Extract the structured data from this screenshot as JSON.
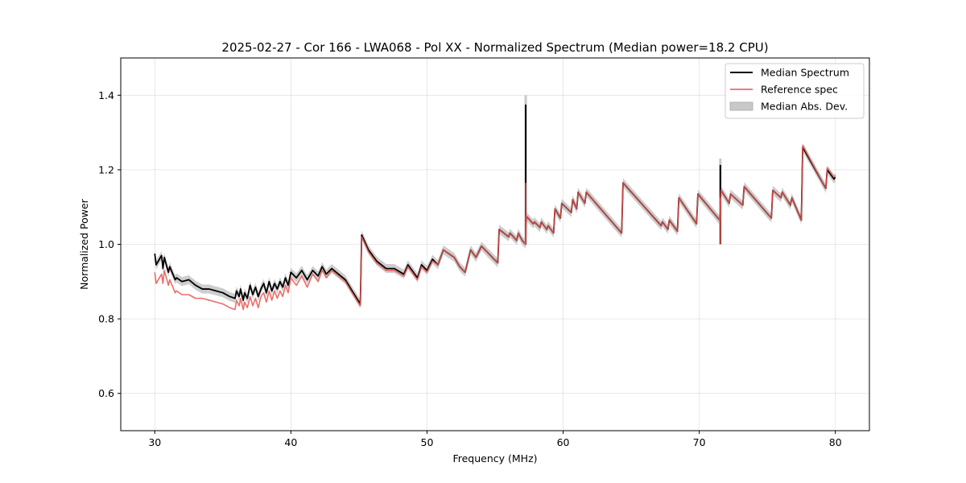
{
  "chart_data": {
    "type": "line",
    "title": "2025-02-27 - Cor 166 - LWA068 - Pol XX - Normalized Spectrum (Median power=18.2 CPU)",
    "xlabel": "Frequency (MHz)",
    "ylabel": "Normalized Power",
    "xlim": [
      27.5,
      82.5
    ],
    "ylim": [
      0.5,
      1.5
    ],
    "xticks": [
      30,
      40,
      50,
      60,
      70,
      80
    ],
    "yticks": [
      0.6,
      0.8,
      1.0,
      1.2,
      1.4
    ],
    "xtick_labels": [
      "30",
      "40",
      "50",
      "60",
      "70",
      "80"
    ],
    "ytick_labels": [
      "0.6",
      "0.8",
      "1.0",
      "1.2",
      "1.4"
    ],
    "grid": true,
    "legend_position": "top-right",
    "mad_width": 0.012,
    "spikes": [
      {
        "x": 57.25,
        "median_top": 1.375,
        "mad_top": 1.4,
        "reference_top": 1.165
      },
      {
        "x": 71.55,
        "median_top": 1.213,
        "mad_top": 1.23,
        "reference_top": 1.125
      }
    ],
    "series": [
      {
        "name": "Median Spectrum",
        "color": "#000000",
        "x": [
          30.0,
          30.1,
          30.5,
          30.6,
          30.7,
          31.0,
          31.1,
          31.5,
          31.6,
          32.0,
          32.5,
          33.0,
          33.5,
          34.0,
          34.5,
          35.0,
          35.5,
          35.9,
          36.0,
          36.2,
          36.3,
          36.5,
          36.6,
          36.8,
          37.0,
          37.2,
          37.4,
          37.6,
          37.8,
          38.0,
          38.2,
          38.4,
          38.6,
          38.8,
          39.0,
          39.2,
          39.4,
          39.6,
          39.8,
          40.0,
          40.4,
          40.8,
          41.2,
          41.6,
          42.0,
          42.3,
          42.6,
          43.0,
          43.5,
          44.0,
          44.5,
          45.1,
          45.2,
          45.7,
          46.3,
          47.0,
          47.6,
          48.3,
          48.6,
          49.3,
          49.6,
          50.0,
          50.4,
          50.8,
          51.2,
          51.6,
          52.0,
          52.4,
          52.8,
          53.2,
          53.6,
          54.0,
          54.4,
          54.8,
          55.2,
          55.3,
          56.0,
          56.1,
          56.6,
          56.7,
          57.0,
          57.25,
          57.3,
          57.8,
          57.9,
          58.3,
          58.4,
          58.8,
          58.9,
          59.3,
          59.4,
          59.8,
          59.9,
          60.6,
          60.7,
          61.0,
          61.1,
          61.6,
          61.7,
          64.3,
          64.4,
          67.2,
          67.3,
          67.7,
          67.8,
          68.4,
          68.5,
          69.8,
          69.9,
          71.5,
          71.6,
          72.2,
          72.3,
          73.2,
          73.3,
          75.3,
          75.4,
          76.0,
          76.1,
          76.7,
          76.8,
          77.5,
          77.6,
          79.3,
          79.4,
          79.9,
          80.0
        ],
        "values": [
          0.975,
          0.945,
          0.97,
          0.935,
          0.965,
          0.925,
          0.94,
          0.905,
          0.91,
          0.9,
          0.905,
          0.89,
          0.88,
          0.88,
          0.875,
          0.87,
          0.86,
          0.855,
          0.875,
          0.86,
          0.88,
          0.85,
          0.87,
          0.855,
          0.89,
          0.865,
          0.885,
          0.86,
          0.88,
          0.895,
          0.87,
          0.9,
          0.875,
          0.895,
          0.88,
          0.9,
          0.885,
          0.91,
          0.89,
          0.925,
          0.91,
          0.93,
          0.905,
          0.93,
          0.915,
          0.94,
          0.92,
          0.935,
          0.92,
          0.905,
          0.875,
          0.84,
          1.025,
          0.985,
          0.955,
          0.935,
          0.935,
          0.92,
          0.945,
          0.91,
          0.945,
          0.93,
          0.96,
          0.945,
          0.985,
          0.975,
          0.965,
          0.94,
          0.925,
          0.985,
          0.965,
          0.995,
          0.98,
          0.965,
          0.95,
          1.04,
          1.02,
          1.03,
          1.01,
          1.03,
          1.01,
          1.0,
          1.075,
          1.055,
          1.06,
          1.045,
          1.06,
          1.04,
          1.05,
          1.03,
          1.095,
          1.07,
          1.11,
          1.085,
          1.12,
          1.095,
          1.14,
          1.11,
          1.14,
          1.03,
          1.165,
          1.05,
          1.06,
          1.04,
          1.065,
          1.035,
          1.125,
          1.055,
          1.135,
          1.065,
          1.145,
          1.11,
          1.135,
          1.105,
          1.155,
          1.07,
          1.145,
          1.125,
          1.14,
          1.105,
          1.125,
          1.065,
          1.26,
          1.15,
          1.2,
          1.175,
          1.18
        ]
      },
      {
        "name": "Reference spec",
        "color": "#e8534d",
        "x": [
          30.0,
          30.1,
          30.5,
          30.6,
          30.7,
          31.0,
          31.1,
          31.5,
          31.6,
          32.0,
          32.5,
          33.0,
          33.5,
          34.0,
          34.5,
          35.0,
          35.5,
          35.9,
          36.0,
          36.2,
          36.3,
          36.5,
          36.6,
          36.8,
          37.0,
          37.2,
          37.4,
          37.6,
          37.8,
          38.0,
          38.2,
          38.4,
          38.6,
          38.8,
          39.0,
          39.2,
          39.4,
          39.6,
          39.8,
          40.0,
          40.4,
          40.8,
          41.2,
          41.6,
          42.0,
          42.3,
          42.6,
          43.0,
          43.5,
          44.0,
          44.5,
          45.1,
          45.2,
          45.7,
          46.3,
          47.0,
          47.6,
          48.3,
          48.6,
          49.3,
          49.6,
          50.0,
          50.4,
          50.8,
          51.2,
          51.6,
          52.0,
          52.4,
          52.8,
          53.2,
          53.6,
          54.0,
          54.4,
          54.8,
          55.2,
          55.3,
          56.0,
          56.1,
          56.6,
          56.7,
          57.0,
          57.25,
          57.3,
          57.8,
          57.9,
          58.3,
          58.4,
          58.8,
          58.9,
          59.3,
          59.4,
          59.8,
          59.9,
          60.6,
          60.7,
          61.0,
          61.1,
          61.6,
          61.7,
          64.3,
          64.4,
          67.2,
          67.3,
          67.7,
          67.8,
          68.4,
          68.5,
          69.8,
          69.9,
          71.5,
          71.6,
          72.2,
          72.3,
          73.2,
          73.3,
          75.3,
          75.4,
          76.0,
          76.1,
          76.7,
          76.8,
          77.5,
          77.6,
          79.3,
          79.4,
          79.9,
          80.0
        ],
        "values": [
          0.925,
          0.895,
          0.92,
          0.895,
          0.93,
          0.89,
          0.905,
          0.87,
          0.875,
          0.865,
          0.865,
          0.855,
          0.855,
          0.85,
          0.845,
          0.84,
          0.83,
          0.825,
          0.85,
          0.835,
          0.855,
          0.825,
          0.845,
          0.83,
          0.86,
          0.835,
          0.855,
          0.83,
          0.86,
          0.87,
          0.845,
          0.875,
          0.85,
          0.875,
          0.855,
          0.875,
          0.86,
          0.89,
          0.87,
          0.91,
          0.89,
          0.915,
          0.885,
          0.92,
          0.9,
          0.93,
          0.91,
          0.93,
          0.915,
          0.9,
          0.87,
          0.835,
          1.02,
          0.98,
          0.95,
          0.93,
          0.93,
          0.915,
          0.94,
          0.905,
          0.94,
          0.925,
          0.955,
          0.945,
          0.985,
          0.975,
          0.965,
          0.94,
          0.925,
          0.985,
          0.965,
          0.995,
          0.98,
          0.965,
          0.95,
          1.04,
          1.02,
          1.03,
          1.01,
          1.03,
          1.01,
          1.0,
          1.075,
          1.055,
          1.06,
          1.045,
          1.06,
          1.04,
          1.05,
          1.03,
          1.095,
          1.07,
          1.11,
          1.085,
          1.12,
          1.095,
          1.14,
          1.11,
          1.14,
          1.03,
          1.165,
          1.05,
          1.06,
          1.04,
          1.065,
          1.035,
          1.125,
          1.055,
          1.135,
          1.065,
          1.145,
          1.11,
          1.135,
          1.105,
          1.155,
          1.07,
          1.145,
          1.125,
          1.14,
          1.105,
          1.125,
          1.065,
          1.265,
          1.15,
          1.205,
          1.18,
          1.185
        ]
      },
      {
        "name": "Median Abs. Dev.",
        "color": "#c8c8c8"
      }
    ]
  }
}
